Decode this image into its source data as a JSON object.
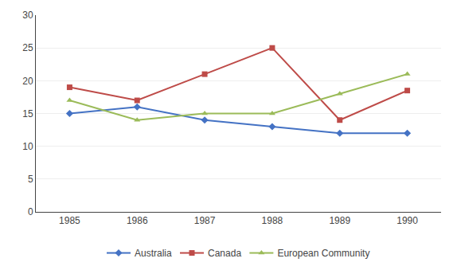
{
  "chart_data": {
    "type": "line",
    "x": [
      1985,
      1986,
      1987,
      1988,
      1989,
      1990
    ],
    "series": [
      {
        "name": "Australia",
        "color": "#4472C4",
        "marker": "diamond",
        "values": [
          15,
          16,
          14,
          13,
          12,
          12
        ]
      },
      {
        "name": "Canada",
        "color": "#BE4B48",
        "marker": "square",
        "values": [
          19,
          17,
          21,
          25,
          14,
          18.5
        ]
      },
      {
        "name": "European Community",
        "color": "#9BBB59",
        "marker": "triangle",
        "values": [
          17,
          14,
          15,
          15,
          18,
          21
        ]
      }
    ],
    "xlim": [
      1984.5,
      1990.5
    ],
    "xticks": [
      1985,
      1986,
      1987,
      1988,
      1989,
      1990
    ],
    "ylim": [
      0,
      30
    ],
    "yticks": [
      0,
      5,
      10,
      15,
      20,
      25,
      30
    ],
    "grid": true,
    "legend": "bottom"
  }
}
